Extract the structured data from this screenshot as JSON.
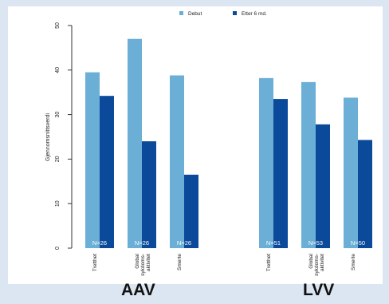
{
  "chart_data": {
    "type": "bar",
    "ylabel": "Gjennomsnittsverdi",
    "ylim": [
      0,
      50
    ],
    "yticks": [
      0,
      10,
      20,
      30,
      40,
      50
    ],
    "legend_position": "top",
    "series": [
      {
        "name": "Debut",
        "color": "#6baed6"
      },
      {
        "name": "Etter 6 md.",
        "color": "#0b4a9a"
      }
    ],
    "groups": [
      {
        "label": "AAV",
        "categories": [
          {
            "label": "Tretthet",
            "values": [
              39.5,
              34.2
            ],
            "n": "N=26"
          },
          {
            "label": "Global sykdoms- aktivitet",
            "values": [
              47,
              24
            ],
            "n": "N=26"
          },
          {
            "label": "Smerte",
            "values": [
              38.8,
              16.5
            ],
            "n": "N=26"
          }
        ]
      },
      {
        "label": "LVV",
        "categories": [
          {
            "label": "Tretthet",
            "values": [
              38.2,
              33.5
            ],
            "n": "N=51"
          },
          {
            "label": "Global sykdoms- aktivitet",
            "values": [
              37.3,
              27.8
            ],
            "n": "N=53"
          },
          {
            "label": "Smerte",
            "values": [
              33.8,
              24.3
            ],
            "n": "N=50"
          }
        ]
      }
    ]
  }
}
